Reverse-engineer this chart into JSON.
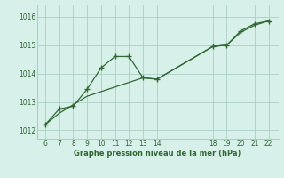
{
  "s1_x": [
    6,
    7,
    8,
    9,
    10,
    11,
    12,
    13,
    14,
    18,
    19,
    20,
    21,
    22
  ],
  "s1_y": [
    1012.2,
    1012.75,
    1012.85,
    1013.45,
    1014.2,
    1014.6,
    1014.6,
    1013.85,
    1013.8,
    1014.95,
    1015.0,
    1015.5,
    1015.75,
    1015.85
  ],
  "s2_x": [
    6,
    7,
    8,
    9,
    13,
    14,
    18,
    19,
    20,
    21,
    22
  ],
  "s2_y": [
    1012.2,
    1012.6,
    1012.9,
    1013.2,
    1013.85,
    1013.8,
    1014.95,
    1015.0,
    1015.45,
    1015.7,
    1015.85
  ],
  "line_color": "#2d6a2d",
  "bg_color": "#d8f0ea",
  "grid_color": "#aacfc5",
  "xlabel": "Graphe pression niveau de la mer (hPa)",
  "xticks": [
    6,
    7,
    8,
    9,
    10,
    11,
    12,
    13,
    14,
    18,
    19,
    20,
    21,
    22
  ],
  "yticks": [
    1012,
    1013,
    1014,
    1015,
    1016
  ],
  "ylim": [
    1011.7,
    1016.4
  ],
  "xlim": [
    5.4,
    22.7
  ],
  "xlabel_color": "#2d6a2d",
  "tick_color": "#2d6a2d"
}
